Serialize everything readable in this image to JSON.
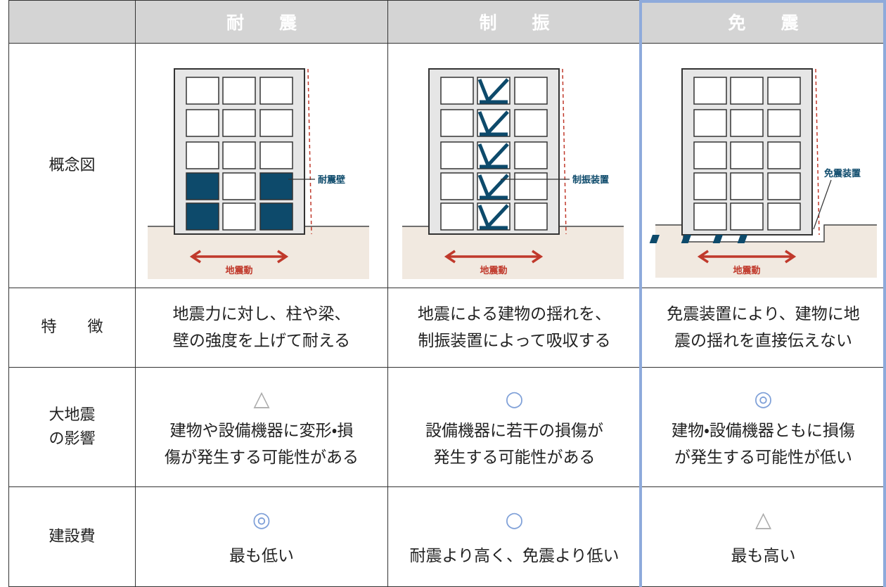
{
  "table": {
    "columns": [
      "耐　　震",
      "制　　振",
      "免　　震"
    ],
    "concept": {
      "label": "概念図",
      "cells": [
        {
          "device": "耐震壁",
          "motion": "地震動"
        },
        {
          "device": "制振装置",
          "motion": "地震動"
        },
        {
          "device": "免震装置",
          "motion": "地震動"
        }
      ]
    },
    "features": {
      "label": "特　　徴",
      "cells": [
        [
          "地震力に対し、柱や梁、",
          "壁の強度を上げて耐える"
        ],
        [
          "地震による建物の揺れを、",
          "制振装置によって吸収する"
        ],
        [
          "免震装置により、建物に地",
          "震の揺れを直接伝えない"
        ]
      ]
    },
    "impact": {
      "label": [
        "大地震",
        "の影響"
      ],
      "cells": [
        {
          "mark": "△",
          "lines": [
            "建物や設備機器に変形・損",
            "傷が発生する可能性がある"
          ]
        },
        {
          "mark": "○",
          "lines": [
            "設備機器に若干の損傷が",
            "発生する可能性がある"
          ]
        },
        {
          "mark": "◎",
          "lines": [
            "建物・設備機器ともに損傷",
            "が発生する可能性が低い"
          ]
        }
      ]
    },
    "cost": {
      "label": "建設費",
      "cells": [
        {
          "mark": "◎",
          "text": "最も低い"
        },
        {
          "mark": "○",
          "text": "耐震より高く、免震より低い"
        },
        {
          "mark": "△",
          "text": "最も高い"
        }
      ]
    }
  }
}
